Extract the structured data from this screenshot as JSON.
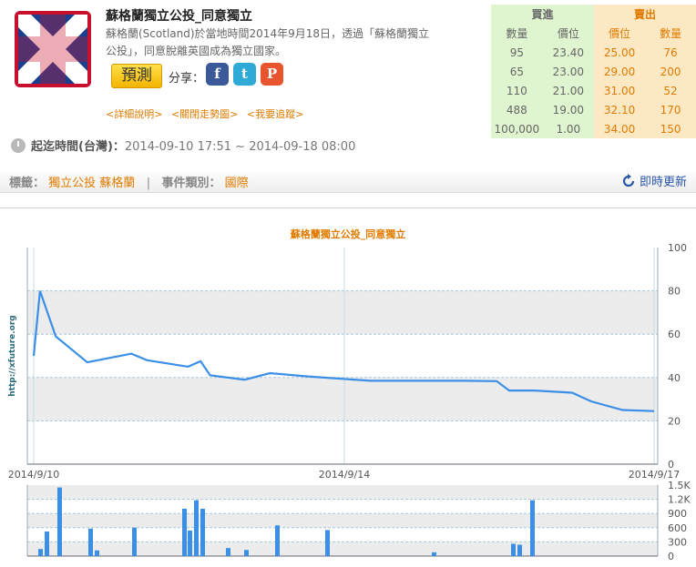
{
  "event": {
    "title": "蘇格蘭獨立公投_同意獨立",
    "description_line1": "蘇格蘭(Scotland)於當地時間2014年9月18日，透過「蘇格蘭獨立",
    "description_line2": "公投」，同意脫離英國成為獨立國家。",
    "predict_label": "預測",
    "share_label": "分享：",
    "links": [
      "<詳細說明>",
      "<關閉走勢圖>",
      "<我要追蹤>"
    ],
    "period_label": "起迄時間(台灣)：",
    "period_value": "2014-09-10 17:51 ~ 2014-09-18 08:00"
  },
  "share_icons": [
    {
      "name": "facebook-icon",
      "glyph": "f",
      "color": "#3b5998"
    },
    {
      "name": "twitter-icon",
      "glyph": "t",
      "color": "#2fa9d6"
    },
    {
      "name": "plurk-icon",
      "glyph": "P",
      "color": "#e8542d"
    }
  ],
  "tags": {
    "tag_label": "標籤：",
    "tag_values": "獨立公投 蘇格蘭",
    "separator": "|",
    "category_label": "事件類別：",
    "category_value": "國際",
    "refresh_label": "即時更新"
  },
  "order_book": {
    "buy_header": "買進",
    "sell_header": "賣出",
    "columns": [
      "數量",
      "價位",
      "價位",
      "數量"
    ],
    "rows": [
      [
        "95",
        "23.40",
        "25.00",
        "76"
      ],
      [
        "65",
        "23.00",
        "29.00",
        "200"
      ],
      [
        "110",
        "21.00",
        "31.00",
        "52"
      ],
      [
        "488",
        "19.00",
        "32.10",
        "170"
      ],
      [
        "100,000",
        "1.00",
        "34.00",
        "150"
      ]
    ]
  },
  "chart_data": [
    {
      "type": "line",
      "title": "蘇格蘭獨立公投_同意獨立",
      "ylabel": "http://xfuture.org",
      "ylim": [
        0,
        100
      ],
      "yticks": [
        "0",
        "20",
        "40",
        "60",
        "80",
        "100"
      ],
      "xticks": [
        "2014/9/10",
        "2014/9/14",
        "2014/9/17"
      ],
      "x": [
        9.65,
        9.75,
        10.0,
        10.5,
        11.2,
        11.45,
        12.1,
        12.3,
        12.45,
        13.0,
        13.4,
        14.0,
        14.5,
        15.0,
        15.5,
        15.55,
        16.0,
        16.5,
        17.0,
        17.2,
        17.4,
        17.6,
        18.2,
        18.5,
        19.0,
        19.5
      ],
      "y": [
        50,
        80,
        59,
        47,
        51,
        48,
        45,
        47.5,
        41,
        39,
        42,
        40.5,
        39.5,
        38.5,
        38.5,
        38.5,
        38.5,
        38.5,
        38.3,
        34,
        34,
        34,
        33,
        29,
        25,
        24.5
      ],
      "grid": true
    },
    {
      "type": "bar",
      "ylim": [
        0,
        1500
      ],
      "yticks": [
        "0",
        "300",
        "600",
        "900",
        "1.2K",
        "1.5K"
      ],
      "values": [
        150,
        520,
        1450,
        580,
        120,
        600,
        1000,
        540,
        1180,
        1000,
        170,
        130,
        650,
        550,
        80,
        260,
        240,
        1180
      ]
    }
  ]
}
